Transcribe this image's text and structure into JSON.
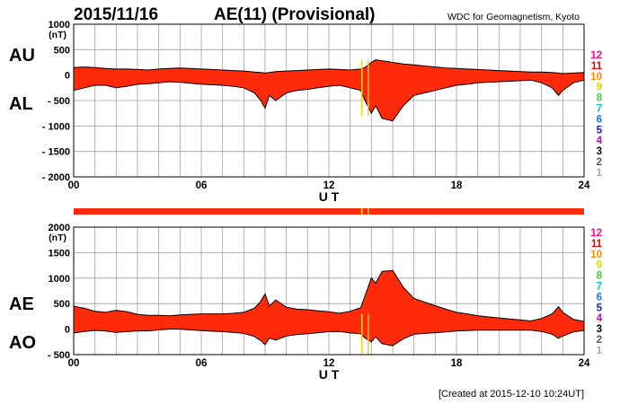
{
  "header": {
    "date": "2015/11/16",
    "title": "AE(11) (Provisional)",
    "source": "WDC for Geomagnetism, Kyoto"
  },
  "footer": {
    "created": "[Created at 2015-12-10 10:24UT]"
  },
  "station_legend": {
    "items": [
      {
        "label": "12",
        "color": "#ff0a8c"
      },
      {
        "label": "11",
        "color": "#e60000"
      },
      {
        "label": "10",
        "color": "#ff8c00"
      },
      {
        "label": "9",
        "color": "#e6d200"
      },
      {
        "label": "8",
        "color": "#3cd23c"
      },
      {
        "label": "7",
        "color": "#00c8d2"
      },
      {
        "label": "6",
        "color": "#0a78ff"
      },
      {
        "label": "5",
        "color": "#1e1ec8"
      },
      {
        "label": "4",
        "color": "#c800c8"
      },
      {
        "label": "3",
        "color": "#000000"
      },
      {
        "label": "2",
        "color": "#555555"
      },
      {
        "label": "1",
        "color": "#aaaaaa"
      }
    ]
  },
  "colors": {
    "fill": "#ff2a0a",
    "outline": "#000000",
    "grid": "#a0a0a0",
    "marker": "#f0d020"
  },
  "chart_data": [
    {
      "type": "area",
      "side_labels": [
        "AU",
        "AL"
      ],
      "unit": "(nT)",
      "xlabel": "U T",
      "xlim": [
        0,
        24
      ],
      "ylim": [
        -2000,
        1000
      ],
      "ytick_labels": [
        "1000",
        "500",
        "0",
        "- 500",
        "- 1000",
        "- 1500",
        "- 2000"
      ],
      "xtick_labels": [
        "00",
        "06",
        "12",
        "18",
        "24"
      ],
      "grid": true,
      "x": [
        0,
        0.5,
        1,
        1.5,
        2,
        2.5,
        3,
        3.5,
        4,
        4.5,
        5,
        5.5,
        6,
        6.5,
        7,
        7.5,
        8,
        8.5,
        8.8,
        9,
        9.2,
        9.5,
        10,
        10.5,
        11,
        11.5,
        12,
        12.5,
        13,
        13.5,
        13.7,
        14,
        14.2,
        14.5,
        15,
        15.5,
        16,
        16.5,
        17,
        17.5,
        18,
        18.5,
        19,
        19.5,
        20,
        20.5,
        21,
        21.5,
        22,
        22.5,
        22.8,
        23,
        23.5,
        24
      ],
      "series": [
        {
          "values": [
            150,
            160,
            150,
            130,
            120,
            120,
            110,
            100,
            120,
            130,
            140,
            130,
            120,
            110,
            100,
            90,
            80,
            60,
            50,
            40,
            50,
            70,
            80,
            90,
            100,
            110,
            120,
            110,
            100,
            120,
            150,
            250,
            300,
            280,
            250,
            220,
            200,
            180,
            160,
            140,
            130,
            120,
            110,
            100,
            90,
            80,
            70,
            60,
            60,
            50,
            40,
            30,
            40,
            50
          ]
        },
        {
          "values": [
            -300,
            -250,
            -200,
            -200,
            -250,
            -220,
            -180,
            -170,
            -150,
            -130,
            -140,
            -160,
            -180,
            -190,
            -200,
            -220,
            -250,
            -350,
            -500,
            -650,
            -400,
            -500,
            -350,
            -300,
            -280,
            -250,
            -220,
            -200,
            -250,
            -300,
            -500,
            -750,
            -600,
            -850,
            -900,
            -600,
            -400,
            -350,
            -300,
            -250,
            -200,
            -180,
            -150,
            -140,
            -130,
            -120,
            -110,
            -100,
            -150,
            -250,
            -400,
            -300,
            -150,
            -100
          ]
        }
      ]
    },
    {
      "type": "area",
      "side_labels": [
        "AE",
        "AO"
      ],
      "unit": "(nT)",
      "xlabel": "U T",
      "xlim": [
        0,
        24
      ],
      "ylim": [
        -500,
        2000
      ],
      "ytick_labels": [
        "2000",
        "1500",
        "1000",
        "500",
        "0",
        "- 500"
      ],
      "xtick_labels": [
        "00",
        "06",
        "12",
        "18",
        "24"
      ],
      "grid": true,
      "x": [
        0,
        0.5,
        1,
        1.5,
        2,
        2.5,
        3,
        3.5,
        4,
        4.5,
        5,
        5.5,
        6,
        6.5,
        7,
        7.5,
        8,
        8.5,
        8.8,
        9,
        9.2,
        9.5,
        10,
        10.5,
        11,
        11.5,
        12,
        12.5,
        13,
        13.5,
        13.7,
        14,
        14.2,
        14.5,
        15,
        15.5,
        16,
        16.5,
        17,
        17.5,
        18,
        18.5,
        19,
        19.5,
        20,
        20.5,
        21,
        21.5,
        22,
        22.5,
        22.8,
        23,
        23.5,
        24
      ],
      "series": [
        {
          "values": [
            450,
            410,
            350,
            330,
            370,
            340,
            290,
            270,
            270,
            260,
            280,
            290,
            300,
            300,
            300,
            310,
            330,
            410,
            550,
            690,
            450,
            570,
            430,
            390,
            380,
            360,
            340,
            310,
            350,
            420,
            650,
            1000,
            900,
            1130,
            1150,
            820,
            600,
            530,
            460,
            390,
            330,
            300,
            260,
            240,
            220,
            200,
            180,
            160,
            210,
            300,
            440,
            330,
            190,
            150
          ]
        },
        {
          "values": [
            -75,
            -45,
            -25,
            -35,
            -65,
            -50,
            -35,
            -35,
            -15,
            0,
            0,
            -15,
            -30,
            -40,
            -50,
            -65,
            -85,
            -145,
            -225,
            -305,
            -175,
            -215,
            -135,
            -105,
            -90,
            -70,
            -50,
            -45,
            -75,
            -90,
            -175,
            -250,
            -150,
            -285,
            -325,
            -190,
            -100,
            -85,
            -70,
            -55,
            -35,
            -30,
            -20,
            -20,
            -20,
            -20,
            -20,
            -20,
            -45,
            -100,
            -180,
            -135,
            -55,
            -25
          ]
        }
      ]
    }
  ]
}
